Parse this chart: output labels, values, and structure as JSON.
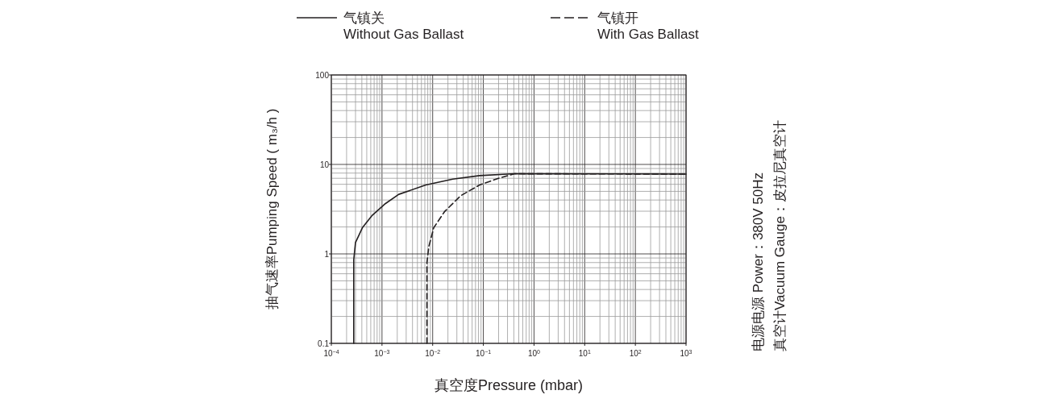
{
  "chart_data": {
    "type": "line",
    "xlabel": "真空度Pressure (mbar)",
    "ylabel": "抽气速率Pumping Speed ( m₃/h )",
    "log": "xy",
    "grid": true,
    "legend": "top",
    "marker": "none",
    "xlim": [
      0.0001,
      1000
    ],
    "ylim": [
      0.1,
      100
    ],
    "xticks": [
      {
        "value": 0.0001,
        "label": "10$^{−4}$"
      },
      {
        "value": 0.001,
        "label": "10$^{−3}$"
      },
      {
        "value": 0.01,
        "label": "10$^{−2}$"
      },
      {
        "value": 0.1,
        "label": "10$^{−1}$"
      },
      {
        "value": 1,
        "label": "10$^{0}$"
      },
      {
        "value": 10,
        "label": "10$^{1}$"
      },
      {
        "value": 100,
        "label": "10$^{2}$"
      },
      {
        "value": 1000,
        "label": "10$^{3}$"
      }
    ],
    "yticks": [
      0.1,
      1,
      10,
      100
    ],
    "series": [
      {
        "name": "气镇关\nWithout Gas Ballast",
        "color": "#231f20",
        "line_style": "solid",
        "x": [
          0.000277,
          0.000277,
          0.0003,
          0.00041,
          0.00063,
          0.00116,
          0.00214,
          0.0073,
          0.0248,
          0.0843,
          0.414,
          1000
        ],
        "values": [
          0.1,
          0.86,
          1.34,
          1.96,
          2.67,
          3.64,
          4.63,
          5.89,
          6.85,
          7.5,
          7.87,
          7.8
        ]
      },
      {
        "name": "气镇开\nWith Gas Ballast",
        "color": "#231f20",
        "line_style": "dashed",
        "x": [
          0.0077,
          0.0077,
          0.0084,
          0.0105,
          0.0171,
          0.0357,
          0.0843,
          0.199,
          0.414,
          1000
        ],
        "values": [
          0.1,
          0.8,
          1.21,
          1.96,
          2.96,
          4.47,
          5.89,
          7.0,
          7.87,
          7.8
        ]
      }
    ],
    "annotations": [
      "电源电源  Power：380V 50Hz",
      "真空计Vacuum Gauge：皮拉尼真空计"
    ]
  }
}
